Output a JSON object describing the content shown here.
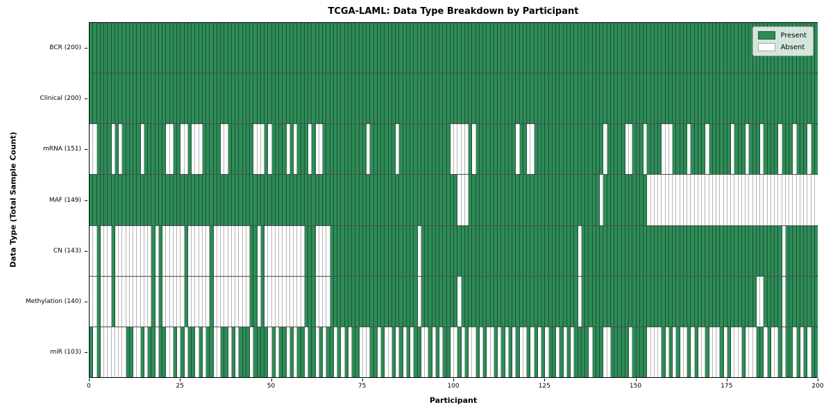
{
  "chart_data": {
    "type": "heatmap",
    "title": "TCGA-LAML: Data Type Breakdown by Participant",
    "xlabel": "Participant",
    "ylabel": "Data Type (Total Sample Count)",
    "x_ticks": [
      0,
      25,
      50,
      75,
      100,
      125,
      150,
      175,
      200
    ],
    "x_range": [
      0,
      200
    ],
    "n_participants": 200,
    "grid": false,
    "legend_position": "upper right",
    "legend": [
      {
        "label": "Present",
        "color": "#2e8b57"
      },
      {
        "label": "Absent",
        "color": "#ffffff"
      }
    ],
    "colors": {
      "present": "#2e8b57",
      "absent": "#ffffff",
      "cell_edge": "rgba(0,0,0,0.4)",
      "axis": "#000000"
    },
    "rows": [
      {
        "label": "BCR (200)",
        "data_type": "BCR",
        "present_count": 200,
        "absent_ranges": []
      },
      {
        "label": "Clinical (200)",
        "data_type": "Clinical",
        "present_count": 200,
        "absent_ranges": []
      },
      {
        "label": "mRNA (151)",
        "data_type": "mRNA",
        "present_count": 151,
        "absent_ranges": [
          [
            0,
            1
          ],
          [
            6,
            6
          ],
          [
            8,
            8
          ],
          [
            14,
            14
          ],
          [
            21,
            22
          ],
          [
            25,
            26
          ],
          [
            28,
            30
          ],
          [
            36,
            37
          ],
          [
            45,
            47
          ],
          [
            49,
            49
          ],
          [
            54,
            54
          ],
          [
            56,
            56
          ],
          [
            60,
            60
          ],
          [
            62,
            63
          ],
          [
            76,
            76
          ],
          [
            84,
            84
          ],
          [
            99,
            103
          ],
          [
            105,
            105
          ],
          [
            117,
            117
          ],
          [
            120,
            121
          ],
          [
            141,
            141
          ],
          [
            147,
            148
          ],
          [
            152,
            152
          ],
          [
            157,
            159
          ],
          [
            164,
            164
          ],
          [
            169,
            169
          ],
          [
            176,
            176
          ],
          [
            180,
            180
          ],
          [
            184,
            184
          ],
          [
            189,
            189
          ],
          [
            193,
            193
          ],
          [
            197,
            197
          ]
        ]
      },
      {
        "label": "MAF (149)",
        "data_type": "MAF",
        "present_count": 149,
        "absent_ranges": [
          [
            101,
            103
          ],
          [
            140,
            140
          ],
          [
            153,
            199
          ]
        ]
      },
      {
        "label": "CN (143)",
        "data_type": "CN",
        "present_count": 143,
        "absent_ranges": [
          [
            0,
            1
          ],
          [
            3,
            5
          ],
          [
            7,
            16
          ],
          [
            18,
            18
          ],
          [
            20,
            25
          ],
          [
            27,
            32
          ],
          [
            34,
            43
          ],
          [
            46,
            46
          ],
          [
            48,
            58
          ],
          [
            62,
            65
          ],
          [
            90,
            90
          ],
          [
            134,
            134
          ],
          [
            190,
            190
          ]
        ]
      },
      {
        "label": "Methylation (140)",
        "data_type": "Methylation",
        "present_count": 140,
        "absent_ranges": [
          [
            0,
            1
          ],
          [
            3,
            5
          ],
          [
            7,
            16
          ],
          [
            18,
            18
          ],
          [
            20,
            25
          ],
          [
            27,
            32
          ],
          [
            34,
            43
          ],
          [
            46,
            46
          ],
          [
            48,
            58
          ],
          [
            62,
            65
          ],
          [
            90,
            90
          ],
          [
            101,
            101
          ],
          [
            134,
            134
          ],
          [
            183,
            184
          ],
          [
            190,
            190
          ]
        ]
      },
      {
        "label": "miR (103)",
        "data_type": "miR",
        "present_count": 103,
        "absent_ranges": [
          [
            1,
            1
          ],
          [
            3,
            9
          ],
          [
            12,
            13
          ],
          [
            15,
            15
          ],
          [
            18,
            18
          ],
          [
            21,
            22
          ],
          [
            24,
            24
          ],
          [
            26,
            26
          ],
          [
            29,
            29
          ],
          [
            31,
            31
          ],
          [
            34,
            35
          ],
          [
            38,
            38
          ],
          [
            40,
            40
          ],
          [
            44,
            44
          ],
          [
            49,
            49
          ],
          [
            51,
            51
          ],
          [
            54,
            54
          ],
          [
            56,
            56
          ],
          [
            59,
            59
          ],
          [
            62,
            62
          ],
          [
            64,
            64
          ],
          [
            67,
            67
          ],
          [
            69,
            69
          ],
          [
            71,
            71
          ],
          [
            74,
            76
          ],
          [
            79,
            79
          ],
          [
            81,
            82
          ],
          [
            84,
            84
          ],
          [
            86,
            86
          ],
          [
            88,
            88
          ],
          [
            91,
            92
          ],
          [
            94,
            94
          ],
          [
            96,
            96
          ],
          [
            99,
            100
          ],
          [
            102,
            102
          ],
          [
            104,
            105
          ],
          [
            107,
            107
          ],
          [
            109,
            110
          ],
          [
            112,
            112
          ],
          [
            114,
            114
          ],
          [
            116,
            116
          ],
          [
            118,
            119
          ],
          [
            121,
            121
          ],
          [
            123,
            123
          ],
          [
            125,
            125
          ],
          [
            128,
            128
          ],
          [
            130,
            130
          ],
          [
            132,
            132
          ],
          [
            137,
            137
          ],
          [
            141,
            142
          ],
          [
            148,
            148
          ],
          [
            153,
            156
          ],
          [
            158,
            158
          ],
          [
            160,
            160
          ],
          [
            162,
            163
          ],
          [
            165,
            165
          ],
          [
            167,
            168
          ],
          [
            170,
            172
          ],
          [
            174,
            174
          ],
          [
            176,
            178
          ],
          [
            180,
            182
          ],
          [
            185,
            185
          ],
          [
            187,
            188
          ],
          [
            190,
            190
          ],
          [
            193,
            193
          ],
          [
            195,
            195
          ],
          [
            197,
            197
          ]
        ]
      }
    ]
  }
}
